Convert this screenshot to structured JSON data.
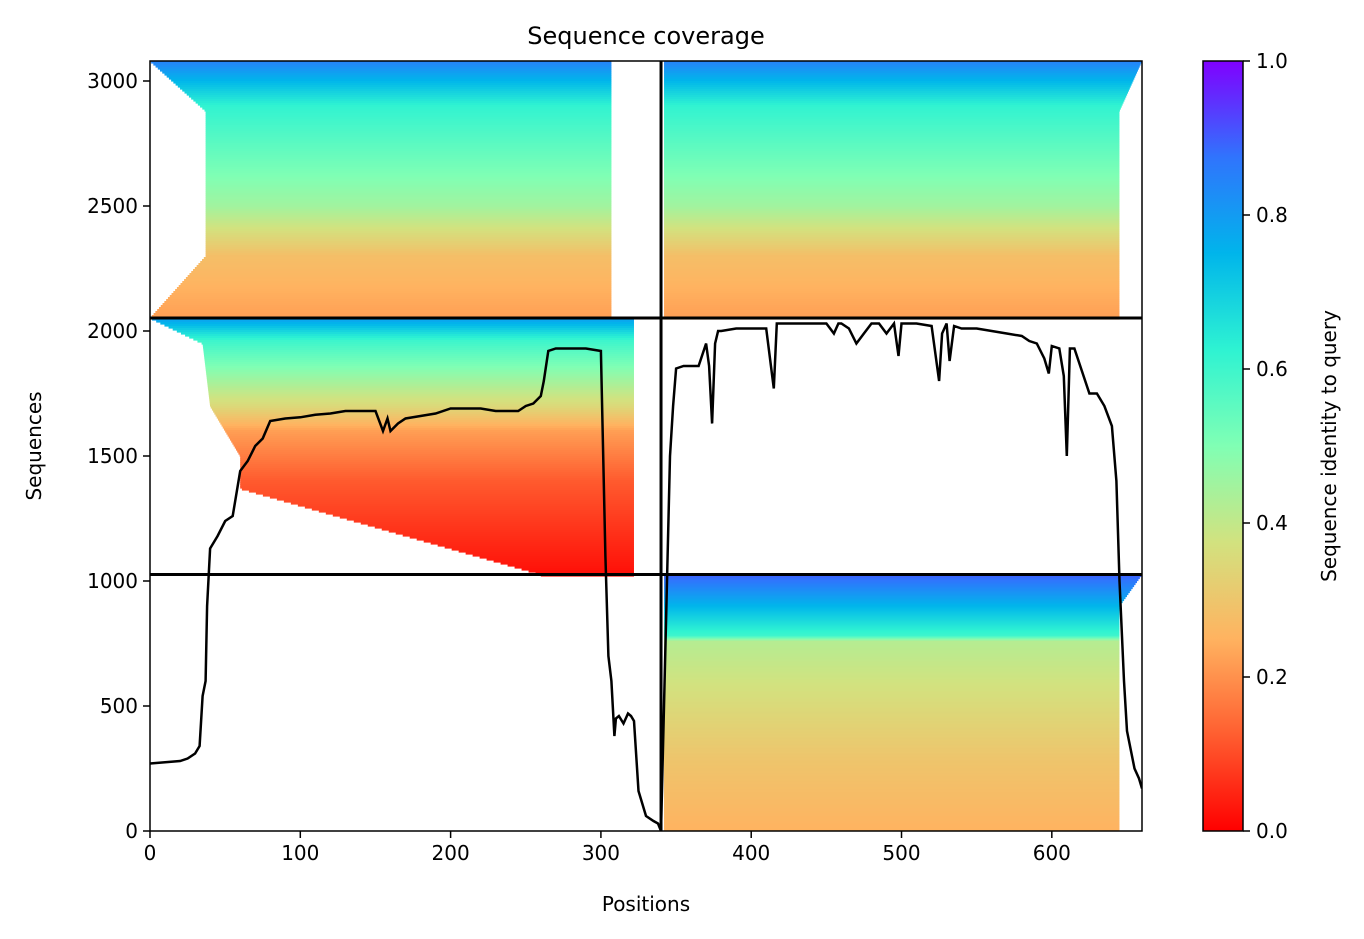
{
  "chart_data": {
    "type": "heatmap",
    "title": "Sequence coverage",
    "xlabel": "Positions",
    "ylabel": "Sequences",
    "xlim": [
      0,
      660
    ],
    "ylim": [
      0,
      3080
    ],
    "x_ticks": [
      0,
      100,
      200,
      300,
      400,
      500,
      600
    ],
    "y_ticks": [
      0,
      500,
      1000,
      1500,
      2000,
      2500,
      3000
    ],
    "colorbar": {
      "label": "Sequence identity to query",
      "range": [
        0.0,
        1.0
      ],
      "ticks": [
        0.0,
        0.2,
        0.4,
        0.6,
        0.8,
        1.0
      ],
      "colormap": "rainbow_r"
    },
    "separators": {
      "vertical_x": 340,
      "horizontal_y": [
        1026,
        2052
      ]
    },
    "blocks": [
      {
        "name": "A-top",
        "x_start": 0,
        "x_end": 307,
        "y_start": 2052,
        "y_end": 3080,
        "identity_bands": [
          [
            3080,
            0.85
          ],
          [
            2900,
            0.62
          ],
          [
            2500,
            0.45
          ],
          [
            2300,
            0.28
          ],
          [
            2052,
            0.22
          ]
        ],
        "left_edge": [
          [
            3080,
            0
          ],
          [
            2880,
            37
          ],
          [
            2300,
            37
          ],
          [
            2052,
            0
          ]
        ]
      },
      {
        "name": "B-top",
        "x_start": 342,
        "x_end": 660,
        "y_start": 2052,
        "y_end": 3080,
        "identity_bands": [
          [
            3080,
            0.85
          ],
          [
            2900,
            0.62
          ],
          [
            2500,
            0.45
          ],
          [
            2300,
            0.28
          ],
          [
            2052,
            0.22
          ]
        ],
        "right_edge": [
          [
            3080,
            660
          ],
          [
            2880,
            645
          ],
          [
            2052,
            645
          ]
        ]
      },
      {
        "name": "A-middle",
        "x_start": 0,
        "x_end": 322,
        "y_start": 1026,
        "y_end": 2052,
        "identity_bands": [
          [
            2052,
            0.8
          ],
          [
            1960,
            0.6
          ],
          [
            1700,
            0.35
          ],
          [
            1600,
            0.22
          ],
          [
            1400,
            0.12
          ],
          [
            1026,
            0.02
          ]
        ],
        "left_edge": [
          [
            2052,
            0
          ],
          [
            1950,
            35
          ],
          [
            1700,
            40
          ],
          [
            1500,
            60
          ],
          [
            1370,
            60
          ],
          [
            1026,
            260
          ]
        ]
      },
      {
        "name": "B-bottom",
        "x_start": 342,
        "x_end": 660,
        "y_start": 0,
        "y_end": 1026,
        "identity_bands": [
          [
            1026,
            0.9
          ],
          [
            900,
            0.75
          ],
          [
            780,
            0.6
          ],
          [
            760,
            0.42
          ],
          [
            300,
            0.3
          ],
          [
            0,
            0.25
          ]
        ],
        "right_edge": [
          [
            1026,
            660
          ],
          [
            900,
            645
          ],
          [
            0,
            645
          ]
        ]
      }
    ],
    "coverage_line": {
      "x": [
        0,
        20,
        25,
        30,
        33,
        35,
        37,
        38,
        40,
        45,
        50,
        55,
        60,
        65,
        70,
        75,
        80,
        90,
        100,
        110,
        120,
        130,
        140,
        150,
        155,
        158,
        160,
        165,
        170,
        180,
        190,
        200,
        210,
        220,
        230,
        240,
        245,
        250,
        255,
        260,
        262,
        265,
        270,
        280,
        290,
        300,
        303,
        305,
        307,
        309,
        310,
        312,
        315,
        318,
        320,
        322,
        325,
        330,
        335,
        338,
        340,
        342,
        344,
        346,
        348,
        350,
        355,
        360,
        365,
        370,
        372,
        374,
        376,
        378,
        380,
        390,
        400,
        410,
        415,
        417,
        420,
        430,
        440,
        450,
        455,
        458,
        460,
        465,
        470,
        475,
        480,
        485,
        490,
        495,
        498,
        500,
        505,
        510,
        520,
        525,
        527,
        530,
        532,
        535,
        540,
        550,
        560,
        570,
        580,
        585,
        590,
        595,
        598,
        600,
        605,
        608,
        610,
        612,
        613,
        615,
        620,
        625,
        628,
        630,
        635,
        640,
        643,
        645,
        648,
        650,
        655,
        658,
        660
      ],
      "y": [
        270,
        280,
        290,
        310,
        340,
        540,
        600,
        900,
        1130,
        1180,
        1240,
        1260,
        1440,
        1480,
        1540,
        1570,
        1640,
        1650,
        1655,
        1665,
        1670,
        1680,
        1680,
        1680,
        1600,
        1650,
        1600,
        1630,
        1650,
        1660,
        1670,
        1690,
        1690,
        1690,
        1680,
        1680,
        1680,
        1700,
        1710,
        1740,
        1800,
        1920,
        1930,
        1930,
        1930,
        1920,
        1100,
        700,
        600,
        380,
        450,
        460,
        430,
        470,
        460,
        440,
        160,
        60,
        40,
        30,
        0,
        500,
        1000,
        1500,
        1700,
        1850,
        1860,
        1860,
        1860,
        1950,
        1860,
        1630,
        1950,
        2000,
        2000,
        2010,
        2010,
        2010,
        1770,
        2030,
        2030,
        2030,
        2030,
        2030,
        1990,
        2030,
        2030,
        2010,
        1950,
        1990,
        2030,
        2030,
        1990,
        2030,
        1900,
        2030,
        2030,
        2030,
        2020,
        1800,
        1990,
        2030,
        1880,
        2020,
        2010,
        2010,
        2000,
        1990,
        1980,
        1960,
        1950,
        1890,
        1830,
        1940,
        1930,
        1820,
        1500,
        1930,
        1930,
        1930,
        1840,
        1750,
        1750,
        1750,
        1700,
        1620,
        1400,
        1000,
        600,
        400,
        250,
        210,
        170
      ]
    }
  }
}
